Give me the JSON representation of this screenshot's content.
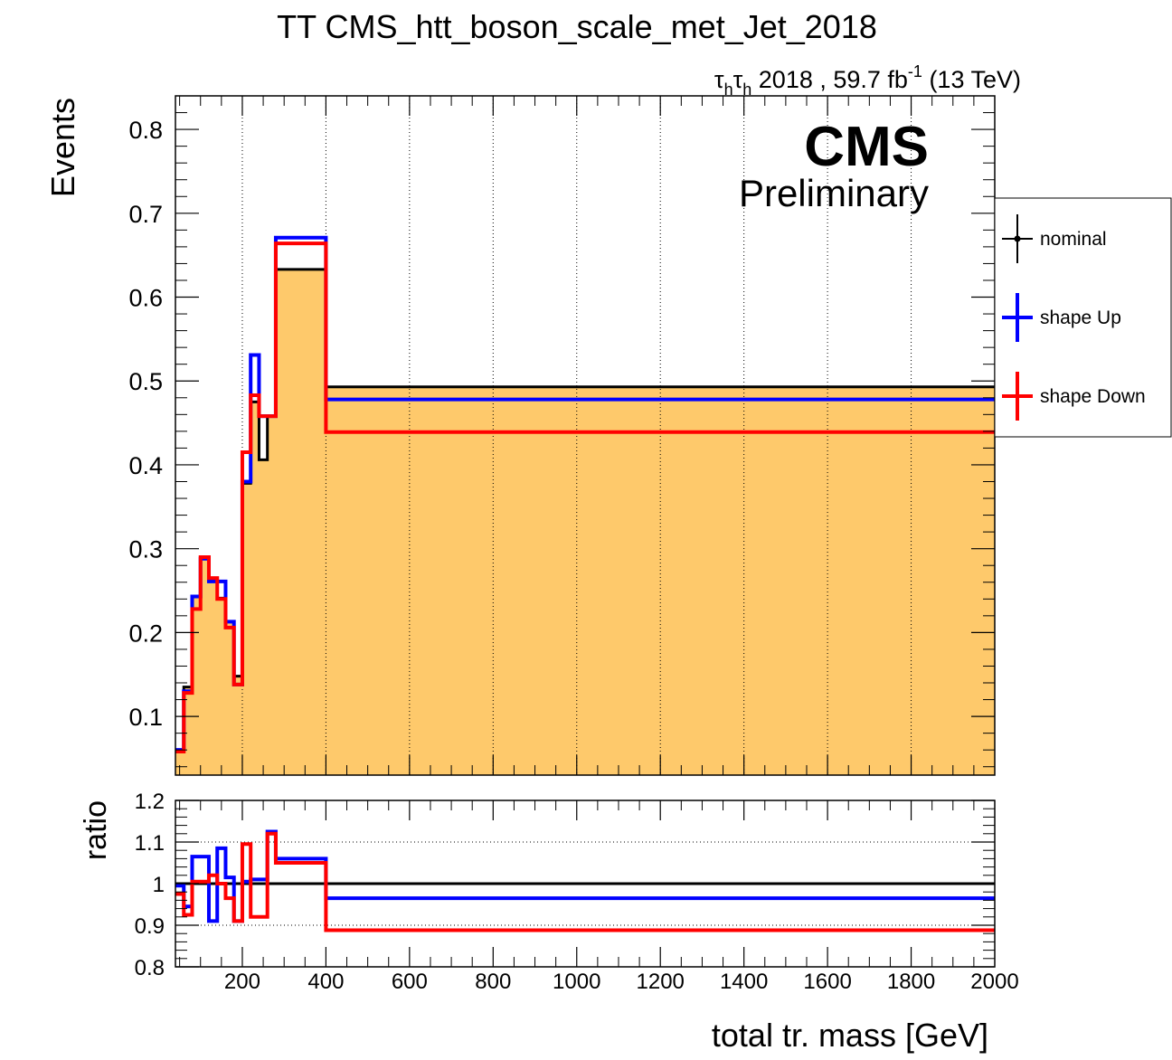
{
  "chart_data": [
    {
      "type": "step",
      "title": "TT CMS_htt_boson_scale_met_Jet_2018",
      "subtitle_parts": [
        "τ",
        "h",
        "τ",
        "h",
        " 2018 , 59.7 fb",
        "-1",
        " (13 TeV)"
      ],
      "cms_label": "CMS",
      "cms_sublabel": "Preliminary",
      "xlabel": "total tr. mass [GeV]",
      "ylabel": "Events",
      "xlim": [
        40,
        2000
      ],
      "ylim": [
        0.03,
        0.84
      ],
      "yticks": [
        0.1,
        0.2,
        0.3,
        0.4,
        0.5,
        0.6,
        0.7,
        0.8
      ],
      "xgrid": [
        200,
        400,
        600,
        800,
        1000,
        1200,
        1400,
        1600,
        1800
      ],
      "bin_edges": [
        40,
        60,
        80,
        100,
        120,
        140,
        160,
        180,
        200,
        220,
        240,
        260,
        280,
        300,
        320,
        340,
        400,
        2000
      ],
      "legend_position": "right",
      "series": [
        {
          "name": "nominal",
          "color": "#000000",
          "filled": true,
          "fill": "#fec96b",
          "values": [
            0.06,
            0.135,
            0.243,
            0.288,
            0.261,
            0.241,
            0.213,
            0.148,
            0.378,
            0.475,
            0.406,
            0.458,
            0.633,
            0.633,
            0.633,
            0.633,
            0.493
          ]
        },
        {
          "name": "shape Up",
          "color": "#0000ff",
          "values": [
            0.06,
            0.13,
            0.243,
            0.288,
            0.261,
            0.261,
            0.213,
            0.138,
            0.38,
            0.531,
            0.458,
            0.458,
            0.671,
            0.671,
            0.671,
            0.671,
            0.478
          ]
        },
        {
          "name": "shape Down",
          "color": "#ff0000",
          "values": [
            0.058,
            0.128,
            0.228,
            0.29,
            0.265,
            0.24,
            0.206,
            0.138,
            0.415,
            0.483,
            0.458,
            0.458,
            0.664,
            0.664,
            0.664,
            0.664,
            0.439
          ]
        }
      ]
    },
    {
      "type": "step",
      "ylabel": "ratio",
      "xlim": [
        40,
        2000
      ],
      "ylim": [
        0.8,
        1.2
      ],
      "yticks": [
        0.8,
        0.9,
        1.0,
        1.1,
        1.2
      ],
      "ytick_labels": [
        "0.8",
        "0.9",
        "1",
        "1.1",
        "1.2"
      ],
      "xticks": [
        200,
        400,
        600,
        800,
        1000,
        1200,
        1400,
        1600,
        1800,
        2000
      ],
      "xtick_labels": [
        "200",
        "400",
        "600",
        "800",
        "1000",
        "1200",
        "1400",
        "1600",
        "1800",
        "2000"
      ],
      "bin_edges": [
        40,
        60,
        80,
        100,
        120,
        140,
        160,
        180,
        200,
        220,
        240,
        260,
        280,
        300,
        320,
        340,
        400,
        2000
      ],
      "series": [
        {
          "name": "nominal",
          "color": "#000000",
          "values": [
            1.0,
            1.0,
            1.0,
            1.0,
            1.0,
            1.0,
            1.0,
            1.0,
            1.0,
            1.0,
            1.0,
            1.0,
            1.0,
            1.0,
            1.0,
            1.0,
            1.0
          ]
        },
        {
          "name": "shape Up",
          "color": "#0000ff",
          "values": [
            0.995,
            0.945,
            1.065,
            1.065,
            0.91,
            1.085,
            1.015,
            0.91,
            1.005,
            1.01,
            1.01,
            1.125,
            1.06,
            1.06,
            1.06,
            1.06,
            0.965
          ]
        },
        {
          "name": "shape Down",
          "color": "#ff0000",
          "values": [
            0.975,
            0.925,
            1.005,
            1.005,
            1.02,
            1.0,
            0.965,
            0.91,
            1.095,
            0.92,
            0.92,
            1.12,
            1.05,
            1.05,
            1.05,
            1.05,
            0.888
          ]
        }
      ]
    }
  ]
}
